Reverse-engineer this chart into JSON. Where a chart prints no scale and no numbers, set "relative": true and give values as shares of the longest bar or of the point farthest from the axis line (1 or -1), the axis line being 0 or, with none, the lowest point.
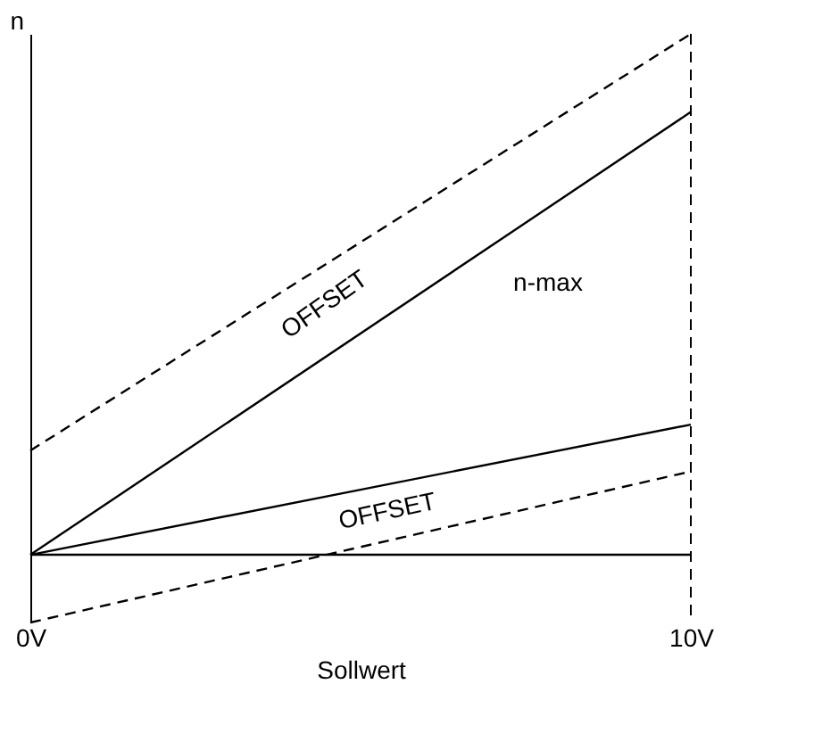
{
  "chart_data": {
    "type": "line",
    "relative": true,
    "x": [
      0,
      10
    ],
    "xlim": [
      0,
      10
    ],
    "xticks": [
      {
        "value": 0,
        "label": "0V"
      },
      {
        "value": 10,
        "label": "10V"
      }
    ],
    "xlabel": "Sollwert",
    "ylabel": "n",
    "tick_labels": "x",
    "grid": false,
    "marker": "none",
    "series": [
      {
        "color": "#000000",
        "values": [
          0.2,
          1.0
        ],
        "line_style": "dashed"
      },
      {
        "color": "#000000",
        "values": [
          0,
          0.85
        ],
        "line_style": "solid"
      },
      {
        "color": "#000000",
        "values": [
          0,
          0.25
        ],
        "line_style": "solid"
      },
      {
        "color": "#000000",
        "values": [
          -0.13,
          0.16
        ],
        "line_style": "dashed"
      }
    ],
    "ref_lines": [
      {
        "axis": "x",
        "value": 10,
        "line_style": "dashed",
        "color": "#000000"
      }
    ],
    "annotations": [
      "OFFSET",
      "n-max",
      "OFFSET"
    ]
  }
}
